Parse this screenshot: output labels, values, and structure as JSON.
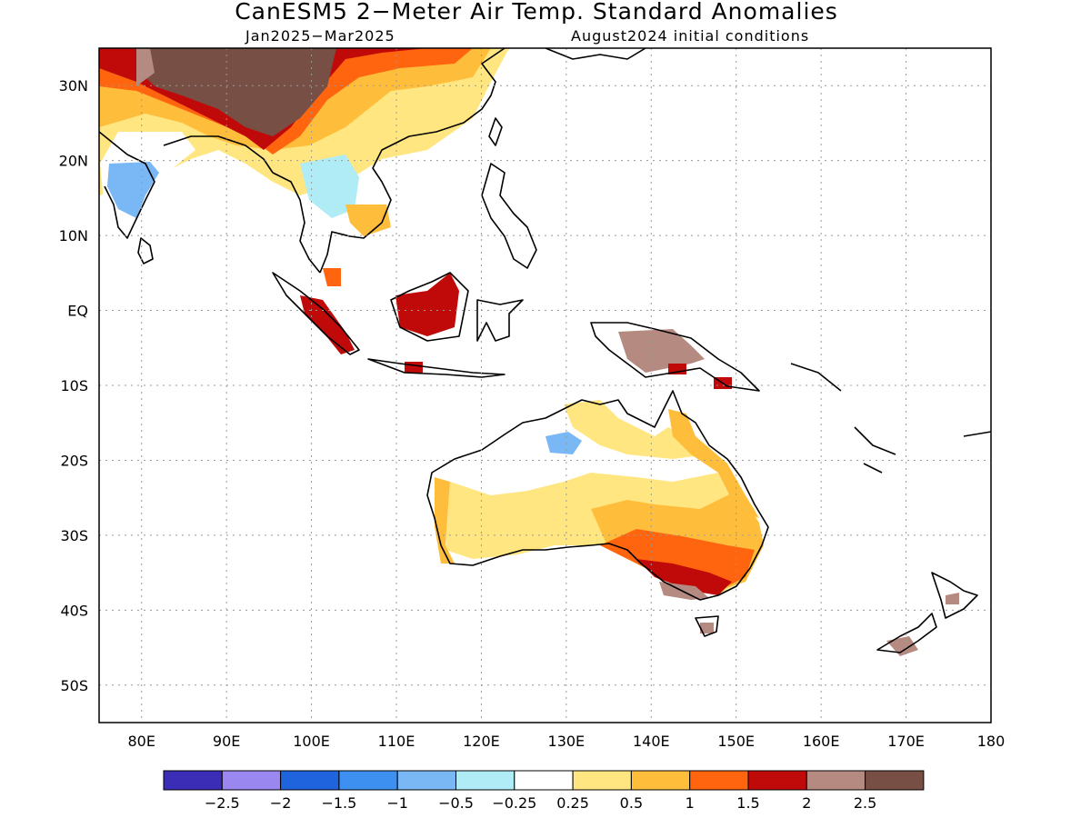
{
  "title": "CanESM5 2−Meter Air Temp. Standard Anomalies",
  "subtitle_left": "Jan2025−Mar2025",
  "subtitle_right": "August2024 initial conditions",
  "map": {
    "lon_range": [
      75,
      180
    ],
    "lat_range": [
      -55,
      35
    ],
    "lat_labels": [
      "30N",
      "20N",
      "10N",
      "EQ",
      "10S",
      "20S",
      "30S",
      "40S",
      "50S"
    ],
    "lon_labels": [
      "80E",
      "90E",
      "100E",
      "110E",
      "120E",
      "130E",
      "140E",
      "150E",
      "160E",
      "170E",
      "180"
    ]
  },
  "legend": {
    "colors": [
      "#3b2db5",
      "#9b87f0",
      "#1f63dd",
      "#3d8ff0",
      "#79b7f5",
      "#b0ecf6",
      "#ffffff",
      "#ffe680",
      "#ffbd3c",
      "#ff640f",
      "#c00a0a",
      "#b58a80",
      "#774f44"
    ],
    "labels": [
      "−2.5",
      "−2",
      "−1.5",
      "−1",
      "−0.5",
      "−0.25",
      "0.25",
      "0.5",
      "1",
      "1.5",
      "2",
      "2.5"
    ]
  }
}
